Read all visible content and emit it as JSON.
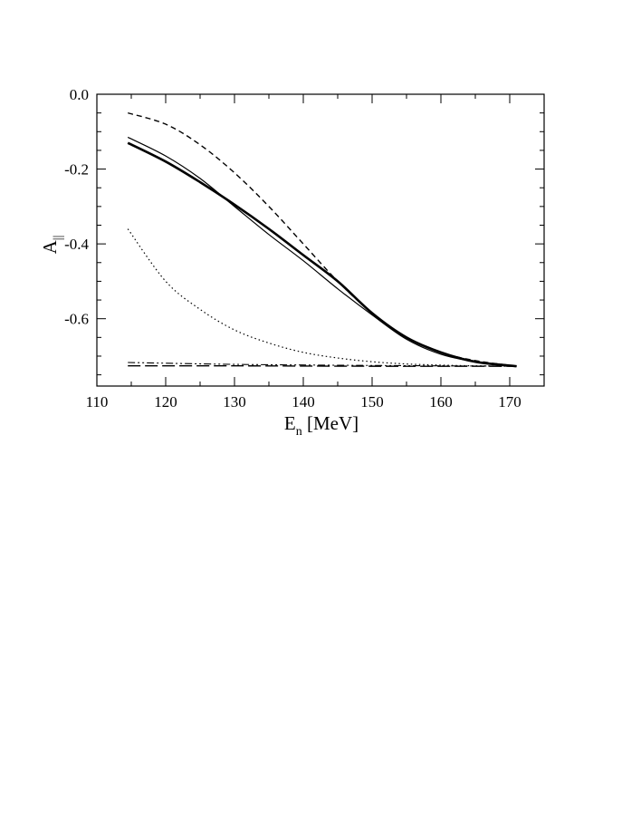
{
  "chart_data": {
    "type": "line",
    "title": "",
    "xlabel": {
      "main": "E",
      "sub": "n",
      "rest": " [MeV]"
    },
    "ylabel": {
      "main": "A",
      "sub": "||"
    },
    "xlim": [
      110,
      175
    ],
    "ylim": [
      -0.78,
      0.0
    ],
    "x_ticks": [
      110,
      120,
      130,
      140,
      150,
      160,
      170
    ],
    "x_tick_labels": [
      "110",
      "120",
      "130",
      "140",
      "150",
      "160",
      "170"
    ],
    "y_ticks": [
      0.0,
      -0.2,
      -0.4,
      -0.6
    ],
    "y_tick_labels": [
      "0.0",
      "-0.2",
      "-0.4",
      "-0.6"
    ],
    "x_minor_step": 5,
    "y_minor_step": 0.05,
    "grid": false,
    "legend": "none",
    "series": [
      {
        "style": "solid-thick",
        "color": "#000000",
        "x": [
          114.5,
          120,
          125,
          130,
          135,
          140,
          145,
          150,
          155,
          160,
          165,
          171
        ],
        "y": [
          -0.13,
          -0.18,
          -0.235,
          -0.295,
          -0.36,
          -0.43,
          -0.5,
          -0.585,
          -0.65,
          -0.69,
          -0.715,
          -0.727
        ]
      },
      {
        "style": "solid-thin",
        "color": "#000000",
        "x": [
          114.5,
          120,
          125,
          130,
          135,
          140,
          145,
          150,
          155,
          160,
          165,
          171
        ],
        "y": [
          -0.115,
          -0.165,
          -0.225,
          -0.3,
          -0.375,
          -0.445,
          -0.52,
          -0.59,
          -0.655,
          -0.695,
          -0.715,
          -0.727
        ]
      },
      {
        "style": "dashed",
        "color": "#000000",
        "x": [
          114.5,
          120,
          125,
          130,
          135,
          140,
          145,
          150,
          155,
          160,
          165,
          171
        ],
        "y": [
          -0.05,
          -0.08,
          -0.135,
          -0.21,
          -0.3,
          -0.4,
          -0.5,
          -0.585,
          -0.65,
          -0.69,
          -0.712,
          -0.727
        ]
      },
      {
        "style": "dotted",
        "color": "#000000",
        "x": [
          114.5,
          120,
          125,
          130,
          135,
          140,
          145,
          150,
          155,
          160,
          165,
          171
        ],
        "y": [
          -0.36,
          -0.5,
          -0.575,
          -0.63,
          -0.665,
          -0.69,
          -0.705,
          -0.715,
          -0.721,
          -0.724,
          -0.726,
          -0.727
        ]
      },
      {
        "style": "dash-dot-dot",
        "color": "#000000",
        "x": [
          114.5,
          130,
          150,
          171
        ],
        "y": [
          -0.717,
          -0.722,
          -0.725,
          -0.727
        ]
      },
      {
        "style": "long-dash",
        "color": "#000000",
        "x": [
          114.5,
          130,
          150,
          171
        ],
        "y": [
          -0.726,
          -0.726,
          -0.727,
          -0.727
        ]
      }
    ]
  }
}
